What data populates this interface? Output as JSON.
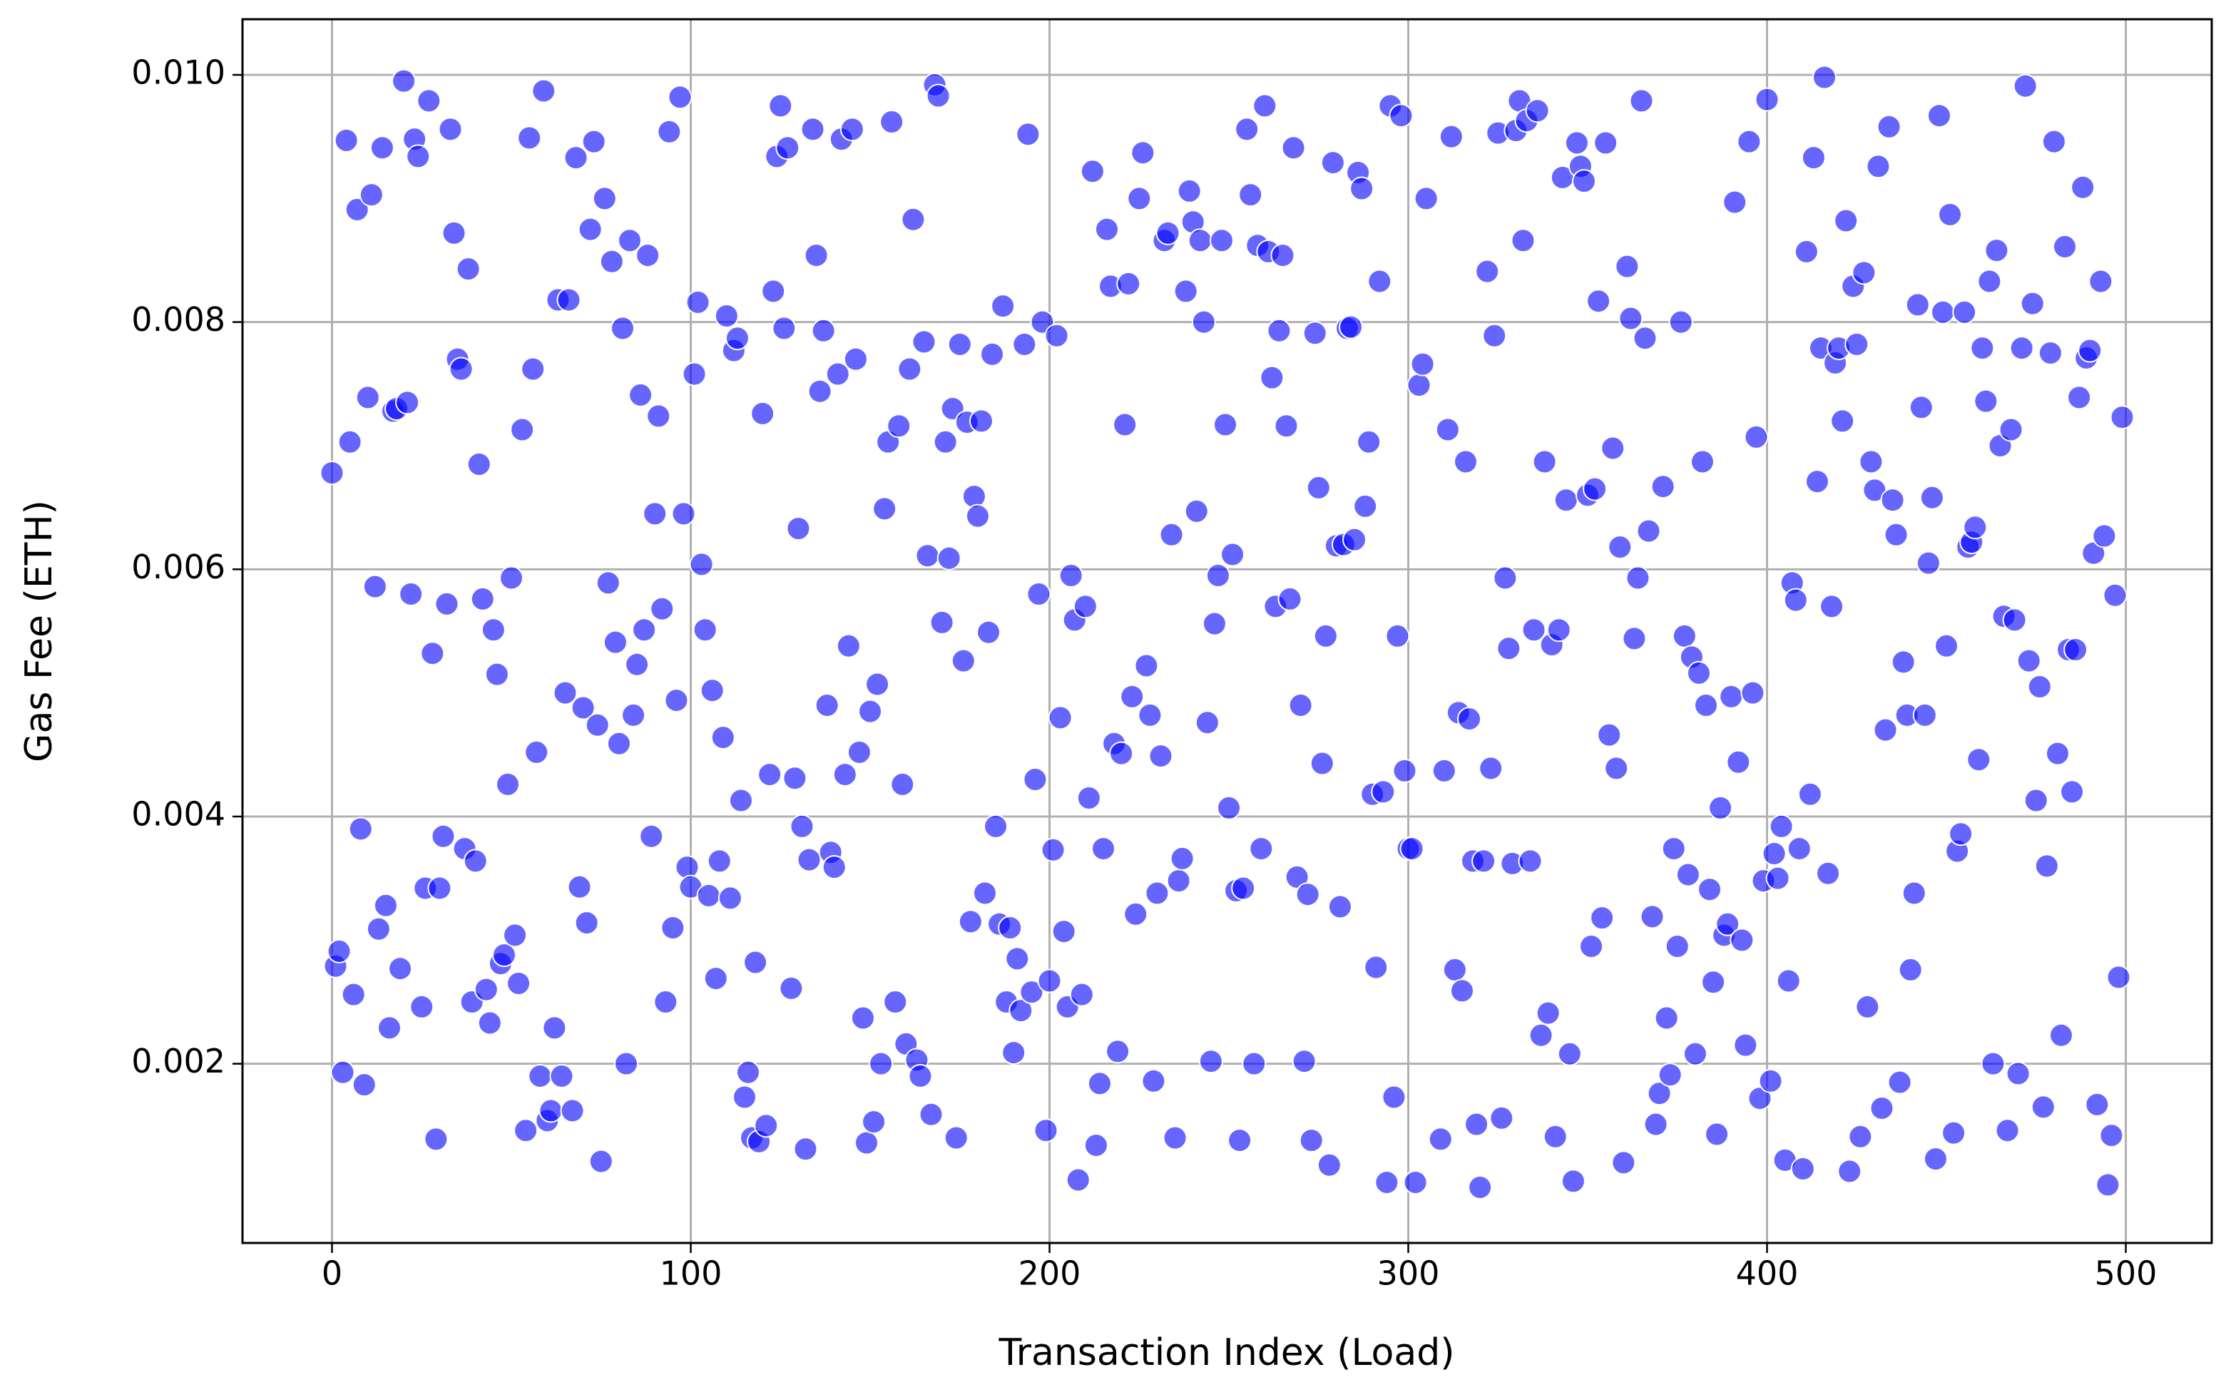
{
  "chart_data": {
    "type": "scatter",
    "xlabel": "Transaction Index (Load)",
    "ylabel": "Gas Fee (ETH)",
    "color": "#0000ff",
    "alpha": 0.6,
    "grid": true,
    "xlim": [
      -24.95,
      523.95
    ],
    "ylim": [
      0.00055,
      0.01045
    ],
    "xticks": [
      0,
      100,
      200,
      300,
      400,
      500
    ],
    "yticks": [
      0.002,
      0.004,
      0.006,
      0.008,
      {
        "value": 0.01,
        "label": "0.010"
      }
    ],
    "x": [
      0,
      1,
      2,
      3,
      4,
      5,
      6,
      7,
      8,
      9,
      10,
      11,
      12,
      13,
      14,
      15,
      16,
      17,
      18,
      19,
      20,
      21,
      22,
      23,
      24,
      25,
      26,
      27,
      28,
      29,
      30,
      31,
      32,
      33,
      34,
      35,
      36,
      37,
      38,
      39,
      40,
      41,
      42,
      43,
      44,
      45,
      46,
      47,
      48,
      49,
      50,
      51,
      52,
      53,
      54,
      55,
      56,
      57,
      58,
      59,
      60,
      61,
      62,
      63,
      64,
      65,
      66,
      67,
      68,
      69,
      70,
      71,
      72,
      73,
      74,
      75,
      76,
      77,
      78,
      79,
      80,
      81,
      82,
      83,
      84,
      85,
      86,
      87,
      88,
      89,
      90,
      91,
      92,
      93,
      94,
      95,
      96,
      97,
      98,
      99,
      100,
      101,
      102,
      103,
      104,
      105,
      106,
      107,
      108,
      109,
      110,
      111,
      112,
      113,
      114,
      115,
      116,
      117,
      118,
      119,
      120,
      121,
      122,
      123,
      124,
      125,
      126,
      127,
      128,
      129,
      130,
      131,
      132,
      133,
      134,
      135,
      136,
      137,
      138,
      139,
      140,
      141,
      142,
      143,
      144,
      145,
      146,
      147,
      148,
      149,
      150,
      151,
      152,
      153,
      154,
      155,
      156,
      157,
      158,
      159,
      160,
      161,
      162,
      163,
      164,
      165,
      166,
      167,
      168,
      169,
      170,
      171,
      172,
      173,
      174,
      175,
      176,
      177,
      178,
      179,
      180,
      181,
      182,
      183,
      184,
      185,
      186,
      187,
      188,
      189,
      190,
      191,
      192,
      193,
      194,
      195,
      196,
      197,
      198,
      199,
      200,
      201,
      202,
      203,
      204,
      205,
      206,
      207,
      208,
      209,
      210,
      211,
      212,
      213,
      214,
      215,
      216,
      217,
      218,
      219,
      220,
      221,
      222,
      223,
      224,
      225,
      226,
      227,
      228,
      229,
      230,
      231,
      232,
      233,
      234,
      235,
      236,
      237,
      238,
      239,
      240,
      241,
      242,
      243,
      244,
      245,
      246,
      247,
      248,
      249,
      250,
      251,
      252,
      253,
      254,
      255,
      256,
      257,
      258,
      259,
      260,
      261,
      262,
      263,
      264,
      265,
      266,
      267,
      268,
      269,
      270,
      271,
      272,
      273,
      274,
      275,
      276,
      277,
      278,
      279,
      280,
      281,
      282,
      283,
      284,
      285,
      286,
      287,
      288,
      289,
      290,
      291,
      292,
      293,
      294,
      295,
      296,
      297,
      298,
      299,
      300,
      301,
      302,
      303,
      304,
      305,
      309,
      310,
      311,
      312,
      313,
      314,
      315,
      316,
      317,
      318,
      319,
      320,
      321,
      322,
      323,
      324,
      325,
      326,
      327,
      328,
      329,
      330,
      331,
      332,
      333,
      334,
      335,
      336,
      337,
      338,
      339,
      340,
      341,
      342,
      343,
      344,
      345,
      346,
      347,
      348,
      349,
      350,
      351,
      352,
      353,
      354,
      355,
      356,
      357,
      358,
      359,
      360,
      361,
      362,
      363,
      364,
      365,
      366,
      367,
      368,
      369,
      370,
      371,
      372,
      373,
      374,
      375,
      376,
      377,
      378,
      379,
      380,
      381,
      382,
      383,
      384,
      385,
      386,
      387,
      388,
      389,
      390,
      391,
      392,
      393,
      394,
      395,
      396,
      397,
      398,
      399,
      400,
      401,
      402,
      403,
      404,
      405,
      406,
      407,
      408,
      409,
      410,
      411,
      412,
      413,
      414,
      415,
      416,
      417,
      418,
      419,
      420,
      421,
      422,
      423,
      424,
      425,
      426,
      427,
      428,
      429,
      430,
      431,
      432,
      433,
      434,
      435,
      436,
      437,
      438,
      439,
      440,
      441,
      442,
      443,
      444,
      445,
      446,
      447,
      448,
      449,
      450,
      451,
      452,
      453,
      454,
      455,
      456,
      457,
      458,
      459,
      460,
      461,
      462,
      463,
      464,
      465,
      466,
      467,
      468,
      469,
      470,
      471,
      472,
      473,
      474,
      475,
      476,
      477,
      478,
      479,
      480,
      481,
      482,
      483,
      484,
      485,
      486,
      487,
      488,
      489,
      490,
      491,
      492,
      493,
      494,
      495,
      496,
      497,
      498,
      499
    ],
    "values": [
      0.00678,
      0.00279,
      0.00291,
      0.00193,
      0.00947,
      0.00703,
      0.00256,
      0.00891,
      0.0039,
      0.00183,
      0.00739,
      0.00903,
      0.00586,
      0.00309,
      0.00941,
      0.00328,
      0.00229,
      0.00728,
      0.0073,
      0.00277,
      0.00995,
      0.00735,
      0.0058,
      0.00948,
      0.00934,
      0.00246,
      0.00342,
      0.00979,
      0.00532,
      0.00139,
      0.00342,
      0.00384,
      0.00572,
      0.00956,
      0.00872,
      0.0077,
      0.00762,
      0.00374,
      0.00843,
      0.0025,
      0.00364,
      0.00685,
      0.00576,
      0.0026,
      0.00233,
      0.00551,
      0.00515,
      0.00281,
      0.00288,
      0.00426,
      0.00593,
      0.00304,
      0.00265,
      0.00713,
      0.00146,
      0.00949,
      0.00762,
      0.00452,
      0.0019,
      0.00987,
      0.00154,
      0.00162,
      0.00229,
      0.00818,
      0.0019,
      0.005,
      0.00818,
      0.00162,
      0.00933,
      0.00343,
      0.00488,
      0.00314,
      0.00875,
      0.00946,
      0.00474,
      0.00121,
      0.009,
      0.00589,
      0.00849,
      0.00541,
      0.00459,
      0.00795,
      0.002,
      0.00866,
      0.00482,
      0.00523,
      0.00741,
      0.00551,
      0.00854,
      0.00384,
      0.00645,
      0.00724,
      0.00568,
      0.0025,
      0.00954,
      0.0031,
      0.00494,
      0.00982,
      0.00645,
      0.00359,
      0.00343,
      0.00758,
      0.00816,
      0.00604,
      0.00551,
      0.00336,
      0.00502,
      0.00269,
      0.00364,
      0.00464,
      0.00805,
      0.00334,
      0.00777,
      0.00787,
      0.00413,
      0.00173,
      0.00193,
      0.0014,
      0.00282,
      0.00137,
      0.00726,
      0.0015,
      0.00434,
      0.00825,
      0.00934,
      0.00975,
      0.00795,
      0.00941,
      0.00261,
      0.00431,
      0.00633,
      0.00392,
      0.00131,
      0.00365,
      0.00956,
      0.00854,
      0.00744,
      0.00793,
      0.0049,
      0.00371,
      0.00359,
      0.00758,
      0.00948,
      0.00434,
      0.00538,
      0.00956,
      0.0077,
      0.00452,
      0.00237,
      0.00136,
      0.00485,
      0.00153,
      0.00507,
      0.002,
      0.00649,
      0.00703,
      0.00962,
      0.0025,
      0.00716,
      0.00426,
      0.00216,
      0.00762,
      0.00883,
      0.00203,
      0.0019,
      0.00784,
      0.00611,
      0.00159,
      0.00992,
      0.00983,
      0.00557,
      0.00703,
      0.00609,
      0.0073,
      0.0014,
      0.00782,
      0.00526,
      0.00719,
      0.00315,
      0.00659,
      0.00643,
      0.0072,
      0.00338,
      0.00549,
      0.00774,
      0.00392,
      0.00313,
      0.00813,
      0.0025,
      0.0031,
      0.00209,
      0.00285,
      0.00243,
      0.00782,
      0.00952,
      0.00258,
      0.0043,
      0.0058,
      0.008,
      0.00146,
      0.00267,
      0.00373,
      0.00789,
      0.0048,
      0.00307,
      0.00246,
      0.00595,
      0.00559,
      0.00106,
      0.00256,
      0.0057,
      0.00415,
      0.00922,
      0.00134,
      0.00184,
      0.00374,
      0.00875,
      0.00829,
      0.00459,
      0.0021,
      0.00451,
      0.00717,
      0.00831,
      0.00497,
      0.00321,
      0.009,
      0.00937,
      0.00522,
      0.00482,
      0.00186,
      0.00338,
      0.00449,
      0.00866,
      0.00872,
      0.00628,
      0.0014,
      0.00348,
      0.00366,
      0.00825,
      0.00906,
      0.00881,
      0.00647,
      0.00866,
      0.008,
      0.00476,
      0.00202,
      0.00556,
      0.00595,
      0.00866,
      0.00717,
      0.00407,
      0.00612,
      0.0034,
      0.00138,
      0.00342,
      0.00956,
      0.00903,
      0.002,
      0.00862,
      0.00374,
      0.00975,
      0.00857,
      0.00755,
      0.0057,
      0.00793,
      0.00854,
      0.00716,
      0.00576,
      0.00941,
      0.00351,
      0.0049,
      0.00202,
      0.00337,
      0.00138,
      0.00791,
      0.00666,
      0.00443,
      0.00546,
      0.00118,
      0.00929,
      0.00619,
      0.00327,
      0.0062,
      0.00795,
      0.00796,
      0.00624,
      0.00921,
      0.00908,
      0.00651,
      0.00703,
      0.00418,
      0.00278,
      0.00833,
      0.0042,
      0.00104,
      0.00975,
      0.00173,
      0.00546,
      0.00967,
      0.00437,
      0.00374,
      0.00374,
      0.00104,
      0.00749,
      0.00766,
      0.009,
      0.00139,
      0.00437,
      0.00713,
      0.0095,
      0.00276,
      0.00484,
      0.00259,
      0.00687,
      0.00479,
      0.00364,
      0.00151,
      0.001,
      0.00364,
      0.00841,
      0.00439,
      0.00789,
      0.00953,
      0.00156,
      0.00593,
      0.00536,
      0.00362,
      0.00955,
      0.00979,
      0.00866,
      0.00963,
      0.00364,
      0.00551,
      0.00971,
      0.00223,
      0.00687,
      0.00241,
      0.00539,
      0.00141,
      0.00551,
      0.00917,
      0.00656,
      0.00208,
      0.00105,
      0.00945,
      0.00926,
      0.00914,
      0.0066,
      0.00295,
      0.00665,
      0.00817,
      0.00318,
      0.00945,
      0.00466,
      0.00698,
      0.00439,
      0.00618,
      0.0012,
      0.00845,
      0.00803,
      0.00544,
      0.00593,
      0.00979,
      0.00787,
      0.00631,
      0.00319,
      0.00151,
      0.00176,
      0.00667,
      0.00237,
      0.00191,
      0.00374,
      0.00295,
      0.008,
      0.00546,
      0.00353,
      0.00529,
      0.00208,
      0.00516,
      0.00687,
      0.0049,
      0.00341,
      0.00266,
      0.00143,
      0.00407,
      0.00304,
      0.00313,
      0.00497,
      0.00897,
      0.00444,
      0.003,
      0.00215,
      0.00946,
      0.005,
      0.00707,
      0.00172,
      0.00348,
      0.0098,
      0.00186,
      0.0037,
      0.0035,
      0.00392,
      0.00122,
      0.00267,
      0.00589,
      0.00575,
      0.00374,
      0.00115,
      0.00857,
      0.00418,
      0.00933,
      0.00671,
      0.00779,
      0.00998,
      0.00354,
      0.0057,
      0.00767,
      0.00779,
      0.0072,
      0.00882,
      0.00113,
      0.00829,
      0.00782,
      0.00141,
      0.0084,
      0.00246,
      0.00687,
      0.00664,
      0.00926,
      0.00164,
      0.0047,
      0.00958,
      0.00656,
      0.00628,
      0.00185,
      0.00525,
      0.00482,
      0.00276,
      0.00338,
      0.00814,
      0.00731,
      0.00482,
      0.00605,
      0.00658,
      0.00123,
      0.00967,
      0.00808,
      0.00538,
      0.00887,
      0.00144,
      0.00372,
      0.00386,
      0.00808,
      0.00618,
      0.00622,
      0.00634,
      0.00446,
      0.00779,
      0.00736,
      0.00833,
      0.002,
      0.00858,
      0.007,
      0.00562,
      0.00146,
      0.00713,
      0.00559,
      0.00192,
      0.00779,
      0.00991,
      0.00526,
      0.00815,
      0.00413,
      0.00505,
      0.00165,
      0.0036,
      0.00775,
      0.00946,
      0.00451,
      0.00223,
      0.00861,
      0.00535,
      0.0042,
      0.00535,
      0.00739,
      0.00909,
      0.00771,
      0.00777,
      0.00613,
      0.00167,
      0.00833,
      0.00627,
      0.00102,
      0.00142,
      0.00579,
      0.0027,
      0.00723
    ]
  }
}
